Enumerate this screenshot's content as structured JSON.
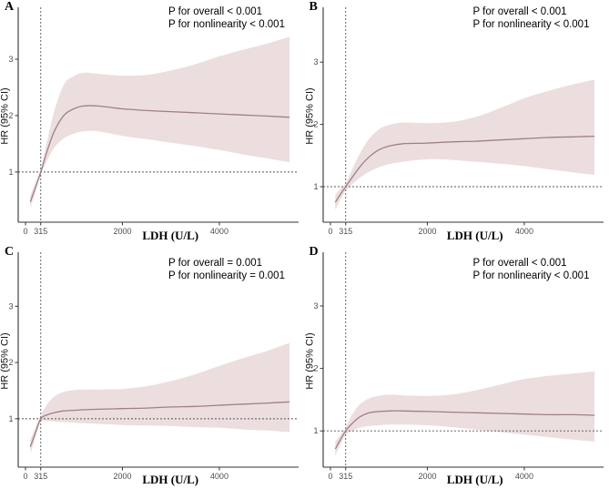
{
  "figure": {
    "background": "#ffffff",
    "band_color": "#ecdede",
    "curve_color": "#9d8085",
    "axis_color": "#333333",
    "ref_line_color": "#555555",
    "tick_label_color": "#4d4d4d"
  },
  "chart_data": [
    {
      "type": "line",
      "panel_label": "A",
      "annotations": [
        "P for overall < 0.001",
        "P for nonlinearity < 0.001"
      ],
      "xlabel": "LDH (U/L)",
      "ylabel": "HR (95% CI)",
      "xlim": [
        -150,
        5560
      ],
      "ylim": [
        0.11,
        3.92
      ],
      "xticks": [
        0,
        315,
        2000,
        4000
      ],
      "yticks": [
        1,
        2,
        3
      ],
      "ref_x": 315,
      "ref_y": 1,
      "x": [
        100,
        200,
        315,
        450,
        600,
        800,
        1000,
        1200,
        1500,
        2000,
        2500,
        3000,
        3500,
        4000,
        4500,
        5000,
        5450
      ],
      "series": [
        {
          "name": "HR",
          "values": [
            0.47,
            0.71,
            1.0,
            1.38,
            1.73,
            2.01,
            2.12,
            2.17,
            2.17,
            2.12,
            2.09,
            2.07,
            2.05,
            2.03,
            2.01,
            1.99,
            1.97
          ]
        },
        {
          "name": "lower_95ci",
          "values": [
            0.36,
            0.62,
            0.94,
            1.21,
            1.44,
            1.6,
            1.68,
            1.72,
            1.72,
            1.64,
            1.58,
            1.52,
            1.46,
            1.39,
            1.31,
            1.24,
            1.17
          ]
        },
        {
          "name": "upper_95ci",
          "values": [
            0.58,
            0.8,
            1.06,
            1.56,
            2.1,
            2.56,
            2.7,
            2.76,
            2.74,
            2.71,
            2.72,
            2.8,
            2.91,
            3.05,
            3.17,
            3.28,
            3.4
          ]
        }
      ]
    },
    {
      "type": "line",
      "panel_label": "B",
      "annotations": [
        "P for overall < 0.001",
        "P for nonlinearity < 0.001"
      ],
      "xlabel": "LDH (U/L)",
      "ylabel": "HR (95% CI)",
      "xlim": [
        -150,
        5560
      ],
      "ylim": [
        0.43,
        3.88
      ],
      "xticks": [
        0,
        315,
        2000,
        4000
      ],
      "yticks": [
        1,
        2,
        3
      ],
      "ref_x": 315,
      "ref_y": 1,
      "x": [
        100,
        200,
        315,
        450,
        600,
        800,
        1000,
        1200,
        1500,
        2000,
        2500,
        3000,
        3500,
        4000,
        4500,
        5000,
        5450
      ],
      "series": [
        {
          "name": "HR",
          "values": [
            0.75,
            0.87,
            1.0,
            1.15,
            1.31,
            1.48,
            1.59,
            1.65,
            1.69,
            1.7,
            1.72,
            1.73,
            1.75,
            1.77,
            1.79,
            1.8,
            1.81
          ]
        },
        {
          "name": "lower_95ci",
          "values": [
            0.63,
            0.78,
            0.94,
            1.04,
            1.14,
            1.24,
            1.31,
            1.36,
            1.4,
            1.44,
            1.43,
            1.4,
            1.37,
            1.33,
            1.28,
            1.23,
            1.19
          ]
        },
        {
          "name": "upper_95ci",
          "values": [
            0.87,
            0.96,
            1.06,
            1.28,
            1.52,
            1.77,
            1.92,
            1.99,
            2.03,
            2.02,
            2.04,
            2.12,
            2.26,
            2.42,
            2.54,
            2.64,
            2.72
          ]
        }
      ]
    },
    {
      "type": "line",
      "panel_label": "C",
      "annotations": [
        "P for overall = 0.001",
        "P for nonlinearity = 0.001"
      ],
      "xlabel": "LDH (U/L)",
      "ylabel": "HR (95% CI)",
      "xlim": [
        -150,
        5560
      ],
      "ylim": [
        0.14,
        3.96
      ],
      "xticks": [
        0,
        315,
        2000,
        4000
      ],
      "yticks": [
        1,
        2,
        3
      ],
      "ref_x": 315,
      "ref_y": 1,
      "x": [
        100,
        200,
        315,
        450,
        600,
        800,
        1000,
        1200,
        1500,
        2000,
        2500,
        3000,
        3500,
        4000,
        4500,
        5000,
        5450
      ],
      "series": [
        {
          "name": "HR",
          "values": [
            0.5,
            0.74,
            1.0,
            1.07,
            1.11,
            1.14,
            1.15,
            1.16,
            1.17,
            1.18,
            1.19,
            1.21,
            1.22,
            1.24,
            1.26,
            1.28,
            1.3
          ]
        },
        {
          "name": "lower_95ci",
          "values": [
            0.38,
            0.64,
            0.94,
            0.96,
            0.95,
            0.94,
            0.93,
            0.92,
            0.91,
            0.89,
            0.88,
            0.87,
            0.85,
            0.84,
            0.81,
            0.79,
            0.76
          ]
        },
        {
          "name": "upper_95ci",
          "values": [
            0.62,
            0.83,
            1.06,
            1.26,
            1.4,
            1.48,
            1.51,
            1.52,
            1.52,
            1.53,
            1.58,
            1.67,
            1.79,
            1.94,
            2.08,
            2.21,
            2.35
          ]
        }
      ]
    },
    {
      "type": "line",
      "panel_label": "D",
      "annotations": [
        "P for overall < 0.001",
        "P for nonlinearity < 0.001"
      ],
      "xlabel": "LDH (U/L)",
      "ylabel": "HR (95% CI)",
      "xlim": [
        -150,
        5560
      ],
      "ylim": [
        0.42,
        3.86
      ],
      "xticks": [
        0,
        315,
        2000,
        4000
      ],
      "yticks": [
        1,
        2,
        3
      ],
      "ref_x": 315,
      "ref_y": 1,
      "x": [
        100,
        200,
        315,
        450,
        600,
        800,
        1000,
        1200,
        1500,
        2000,
        2500,
        3000,
        3500,
        4000,
        4500,
        5000,
        5450
      ],
      "series": [
        {
          "name": "HR",
          "values": [
            0.71,
            0.85,
            1.0,
            1.12,
            1.22,
            1.29,
            1.31,
            1.32,
            1.32,
            1.31,
            1.3,
            1.29,
            1.28,
            1.27,
            1.26,
            1.26,
            1.25
          ]
        },
        {
          "name": "lower_95ci",
          "values": [
            0.6,
            0.77,
            0.94,
            1.0,
            1.05,
            1.08,
            1.09,
            1.1,
            1.1,
            1.09,
            1.06,
            1.02,
            0.98,
            0.94,
            0.9,
            0.86,
            0.83
          ]
        },
        {
          "name": "upper_95ci",
          "values": [
            0.83,
            0.93,
            1.06,
            1.26,
            1.42,
            1.52,
            1.56,
            1.58,
            1.57,
            1.56,
            1.58,
            1.65,
            1.74,
            1.83,
            1.88,
            1.92,
            1.95
          ]
        }
      ]
    }
  ]
}
